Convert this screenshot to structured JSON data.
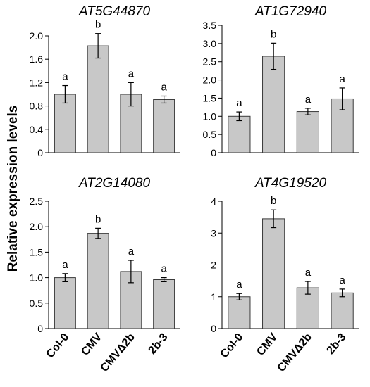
{
  "ylabel": "Relative expression levels",
  "bar_color": "#c8c8c8",
  "chart_data": [
    {
      "type": "bar",
      "title": "AT5G44870",
      "categories": [
        "Col-0",
        "CMV",
        "CMVΔ2b",
        "2b-3"
      ],
      "values": [
        1.0,
        1.83,
        1.0,
        0.91
      ],
      "errors": [
        0.15,
        0.21,
        0.2,
        0.06
      ],
      "letters": [
        "a",
        "b",
        "a",
        "a"
      ],
      "ylim": [
        0,
        2.0
      ],
      "yticks": [
        "0",
        "0.4",
        "0.8",
        "1.2",
        "1.6",
        "2.0"
      ],
      "show_xticklabels": false
    },
    {
      "type": "bar",
      "title": "AT1G72940",
      "categories": [
        "Col-0",
        "CMV",
        "CMVΔ2b",
        "2b-3"
      ],
      "values": [
        1.0,
        2.65,
        1.13,
        1.48
      ],
      "errors": [
        0.12,
        0.36,
        0.09,
        0.3
      ],
      "letters": [
        "a",
        "b",
        "a",
        "a"
      ],
      "ylim": [
        0,
        3.5
      ],
      "yticks": [
        "0",
        "0.5",
        "1.0",
        "1.5",
        "2.0",
        "2.5",
        "3.0",
        "3.5"
      ],
      "show_xticklabels": false
    },
    {
      "type": "bar",
      "title": "AT2G14080",
      "categories": [
        "Col-0",
        "CMV",
        "CMVΔ2b",
        "2b-3"
      ],
      "values": [
        1.0,
        1.87,
        1.12,
        0.96
      ],
      "errors": [
        0.08,
        0.1,
        0.22,
        0.04
      ],
      "letters": [
        "a",
        "b",
        "a",
        "a"
      ],
      "ylim": [
        0,
        2.5
      ],
      "yticks": [
        "0",
        "0.5",
        "1.0",
        "1.5",
        "2.0",
        "2.5"
      ],
      "show_xticklabels": true
    },
    {
      "type": "bar",
      "title": "AT4G19520",
      "categories": [
        "Col-0",
        "CMV",
        "CMVΔ2b",
        "2b-3"
      ],
      "values": [
        1.0,
        3.45,
        1.28,
        1.12
      ],
      "errors": [
        0.1,
        0.28,
        0.2,
        0.12
      ],
      "letters": [
        "a",
        "b",
        "a",
        "a"
      ],
      "ylim": [
        0,
        4
      ],
      "yticks": [
        "0",
        "1",
        "2",
        "3",
        "4"
      ],
      "show_xticklabels": true
    }
  ]
}
